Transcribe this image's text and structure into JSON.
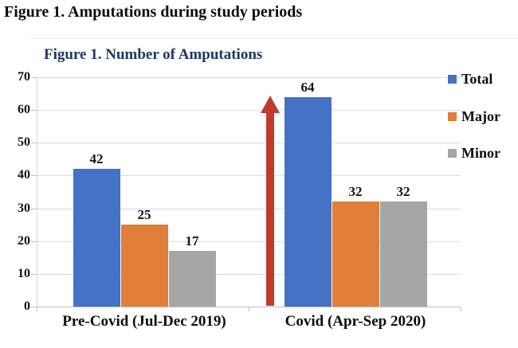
{
  "page": {
    "title": "Figure 1. Amputations during study periods"
  },
  "chart_data": {
    "type": "bar",
    "title": "Figure 1. Number of Amputations",
    "title_color": "#1f3864",
    "categories": [
      "Pre-Covid (Jul-Dec 2019)",
      "Covid (Apr-Sep 2020)"
    ],
    "series": [
      {
        "name": "Total",
        "color": "#4472c4",
        "values": [
          42,
          64
        ]
      },
      {
        "name": "Major",
        "color": "#e07e3a",
        "values": [
          25,
          32
        ]
      },
      {
        "name": "Minor",
        "color": "#a6a6a6",
        "values": [
          17,
          32
        ]
      }
    ],
    "ylim": [
      0,
      70
    ],
    "ytick_step": 10,
    "grid": true,
    "legend_position": "right",
    "xlabel": "",
    "ylabel": "",
    "annotation": {
      "type": "up-arrow",
      "target": "Covid Total bar",
      "color": "#be3b2e"
    }
  }
}
